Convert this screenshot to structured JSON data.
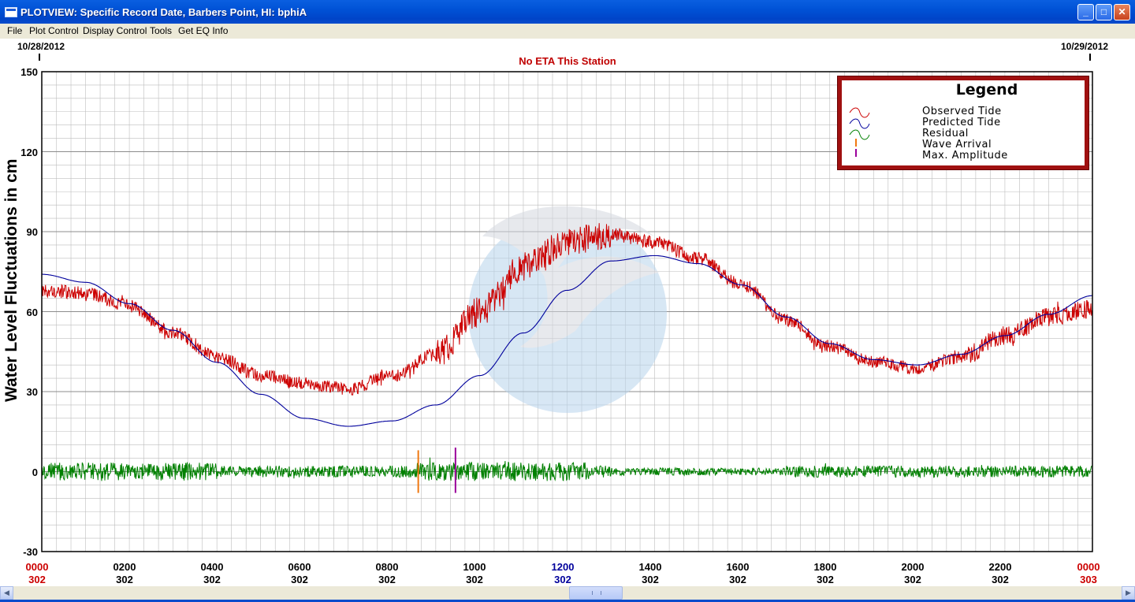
{
  "window": {
    "title": "PLOTVIEW: Specific Record Date, Barbers Point, HI: bphiA",
    "buttons": {
      "minimize": "_",
      "maximize": "□",
      "close": "✕"
    }
  },
  "menu": [
    "File",
    "Plot Control",
    "Display Control",
    "Tools",
    "Get EQ Info"
  ],
  "header": {
    "start_date": "10/28/2012",
    "end_date": "10/29/2012",
    "eta_text": "No ETA This Station"
  },
  "chart_data": {
    "type": "line",
    "ylabel": "Water Level Fluctuations in cm",
    "ylim": [
      -30,
      150
    ],
    "yticks": [
      "150",
      "120",
      "90",
      "60",
      "30",
      "0",
      "-30"
    ],
    "xlim": [
      0,
      24
    ],
    "grid": true,
    "xticks": [
      {
        "time": "0000",
        "day": "302",
        "color": "#cc0000"
      },
      {
        "time": "0200",
        "day": "302"
      },
      {
        "time": "0400",
        "day": "302"
      },
      {
        "time": "0600",
        "day": "302"
      },
      {
        "time": "0800",
        "day": "302"
      },
      {
        "time": "1000",
        "day": "302"
      },
      {
        "time": "1200",
        "day": "302",
        "color": "#00009c"
      },
      {
        "time": "1400",
        "day": "302"
      },
      {
        "time": "1600",
        "day": "302"
      },
      {
        "time": "1800",
        "day": "302"
      },
      {
        "time": "2000",
        "day": "302"
      },
      {
        "time": "2200",
        "day": "302"
      },
      {
        "time": "0000",
        "day": "303",
        "color": "#cc0000"
      }
    ],
    "legend": {
      "title": "Legend",
      "placement": "top-right",
      "entries": [
        {
          "label": "Observed Tide",
          "color": "#cc0000",
          "symbol": "wave"
        },
        {
          "label": "Predicted Tide",
          "color": "#00009c",
          "symbol": "wave"
        },
        {
          "label": "Residual",
          "color": "#008000",
          "symbol": "wave"
        },
        {
          "label": "Wave Arrival",
          "color": "#f07810",
          "symbol": "bar"
        },
        {
          "label": "Max. Amplitude",
          "color": "#9b009b",
          "symbol": "bar"
        }
      ]
    },
    "series": [
      {
        "name": "Predicted Tide",
        "color": "#00009c",
        "x": [
          0,
          1,
          2,
          3,
          4,
          5,
          6,
          7,
          8,
          9,
          10,
          11,
          12,
          13,
          14,
          15,
          16,
          17,
          18,
          19,
          20,
          21,
          22,
          23,
          24
        ],
        "values": [
          74,
          71,
          63,
          53,
          41,
          29,
          20,
          17,
          19,
          25,
          36,
          52,
          68,
          79,
          81,
          78,
          70,
          58,
          48,
          42,
          40,
          44,
          51,
          59,
          66
        ]
      },
      {
        "name": "Observed Tide",
        "color": "#cc0000",
        "x": [
          0,
          1,
          2,
          3,
          4,
          5,
          6,
          7,
          8,
          9,
          10,
          11,
          12,
          13,
          14,
          15,
          16,
          17,
          18,
          19,
          20,
          21,
          22,
          23,
          24
        ],
        "values": [
          68,
          67,
          62,
          52,
          43,
          36,
          33,
          31,
          36,
          44,
          60,
          77,
          86,
          89,
          86,
          80,
          70,
          57,
          47,
          41,
          39,
          43,
          51,
          58,
          61
        ]
      },
      {
        "name": "Residual",
        "color": "#008000",
        "x": [
          0,
          1,
          2,
          3,
          4,
          5,
          6,
          7,
          8,
          9,
          10,
          11,
          12,
          13,
          14,
          15,
          16,
          17,
          18,
          19,
          20,
          21,
          22,
          23,
          24
        ],
        "values": [
          0,
          0,
          0,
          0,
          0,
          0,
          0,
          0,
          0,
          0,
          0,
          0,
          0,
          0,
          0,
          0,
          0,
          0,
          0,
          0,
          0,
          0,
          0,
          0,
          0
        ]
      }
    ],
    "markers": [
      {
        "name": "Wave Arrival",
        "x": 8.6,
        "color": "#f07810"
      },
      {
        "name": "Max. Amplitude",
        "x": 9.45,
        "color": "#9b009b"
      }
    ]
  }
}
